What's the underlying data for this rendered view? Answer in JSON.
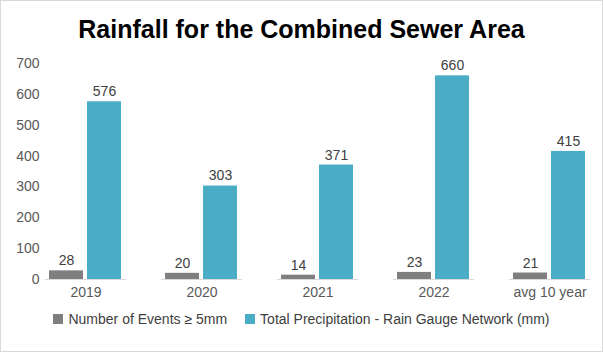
{
  "chart_data": {
    "type": "bar",
    "title": "Rainfall for the Combined Sewer Area",
    "categories": [
      "2019",
      "2020",
      "2021",
      "2022",
      "avg 10 year"
    ],
    "series": [
      {
        "name": "Number of Events ≥ 5mm",
        "color": "#7f7f7f",
        "values": [
          28,
          20,
          14,
          23,
          21
        ]
      },
      {
        "name": "Total Precipitation - Rain Gauge Network (mm)",
        "color": "#4bacc6",
        "values": [
          576,
          303,
          371,
          660,
          415
        ]
      }
    ],
    "ylim": [
      0,
      700
    ],
    "yticks": [
      0,
      100,
      200,
      300,
      400,
      500,
      600,
      700
    ],
    "grid": false,
    "legend": "bottom",
    "data_labels": true
  }
}
